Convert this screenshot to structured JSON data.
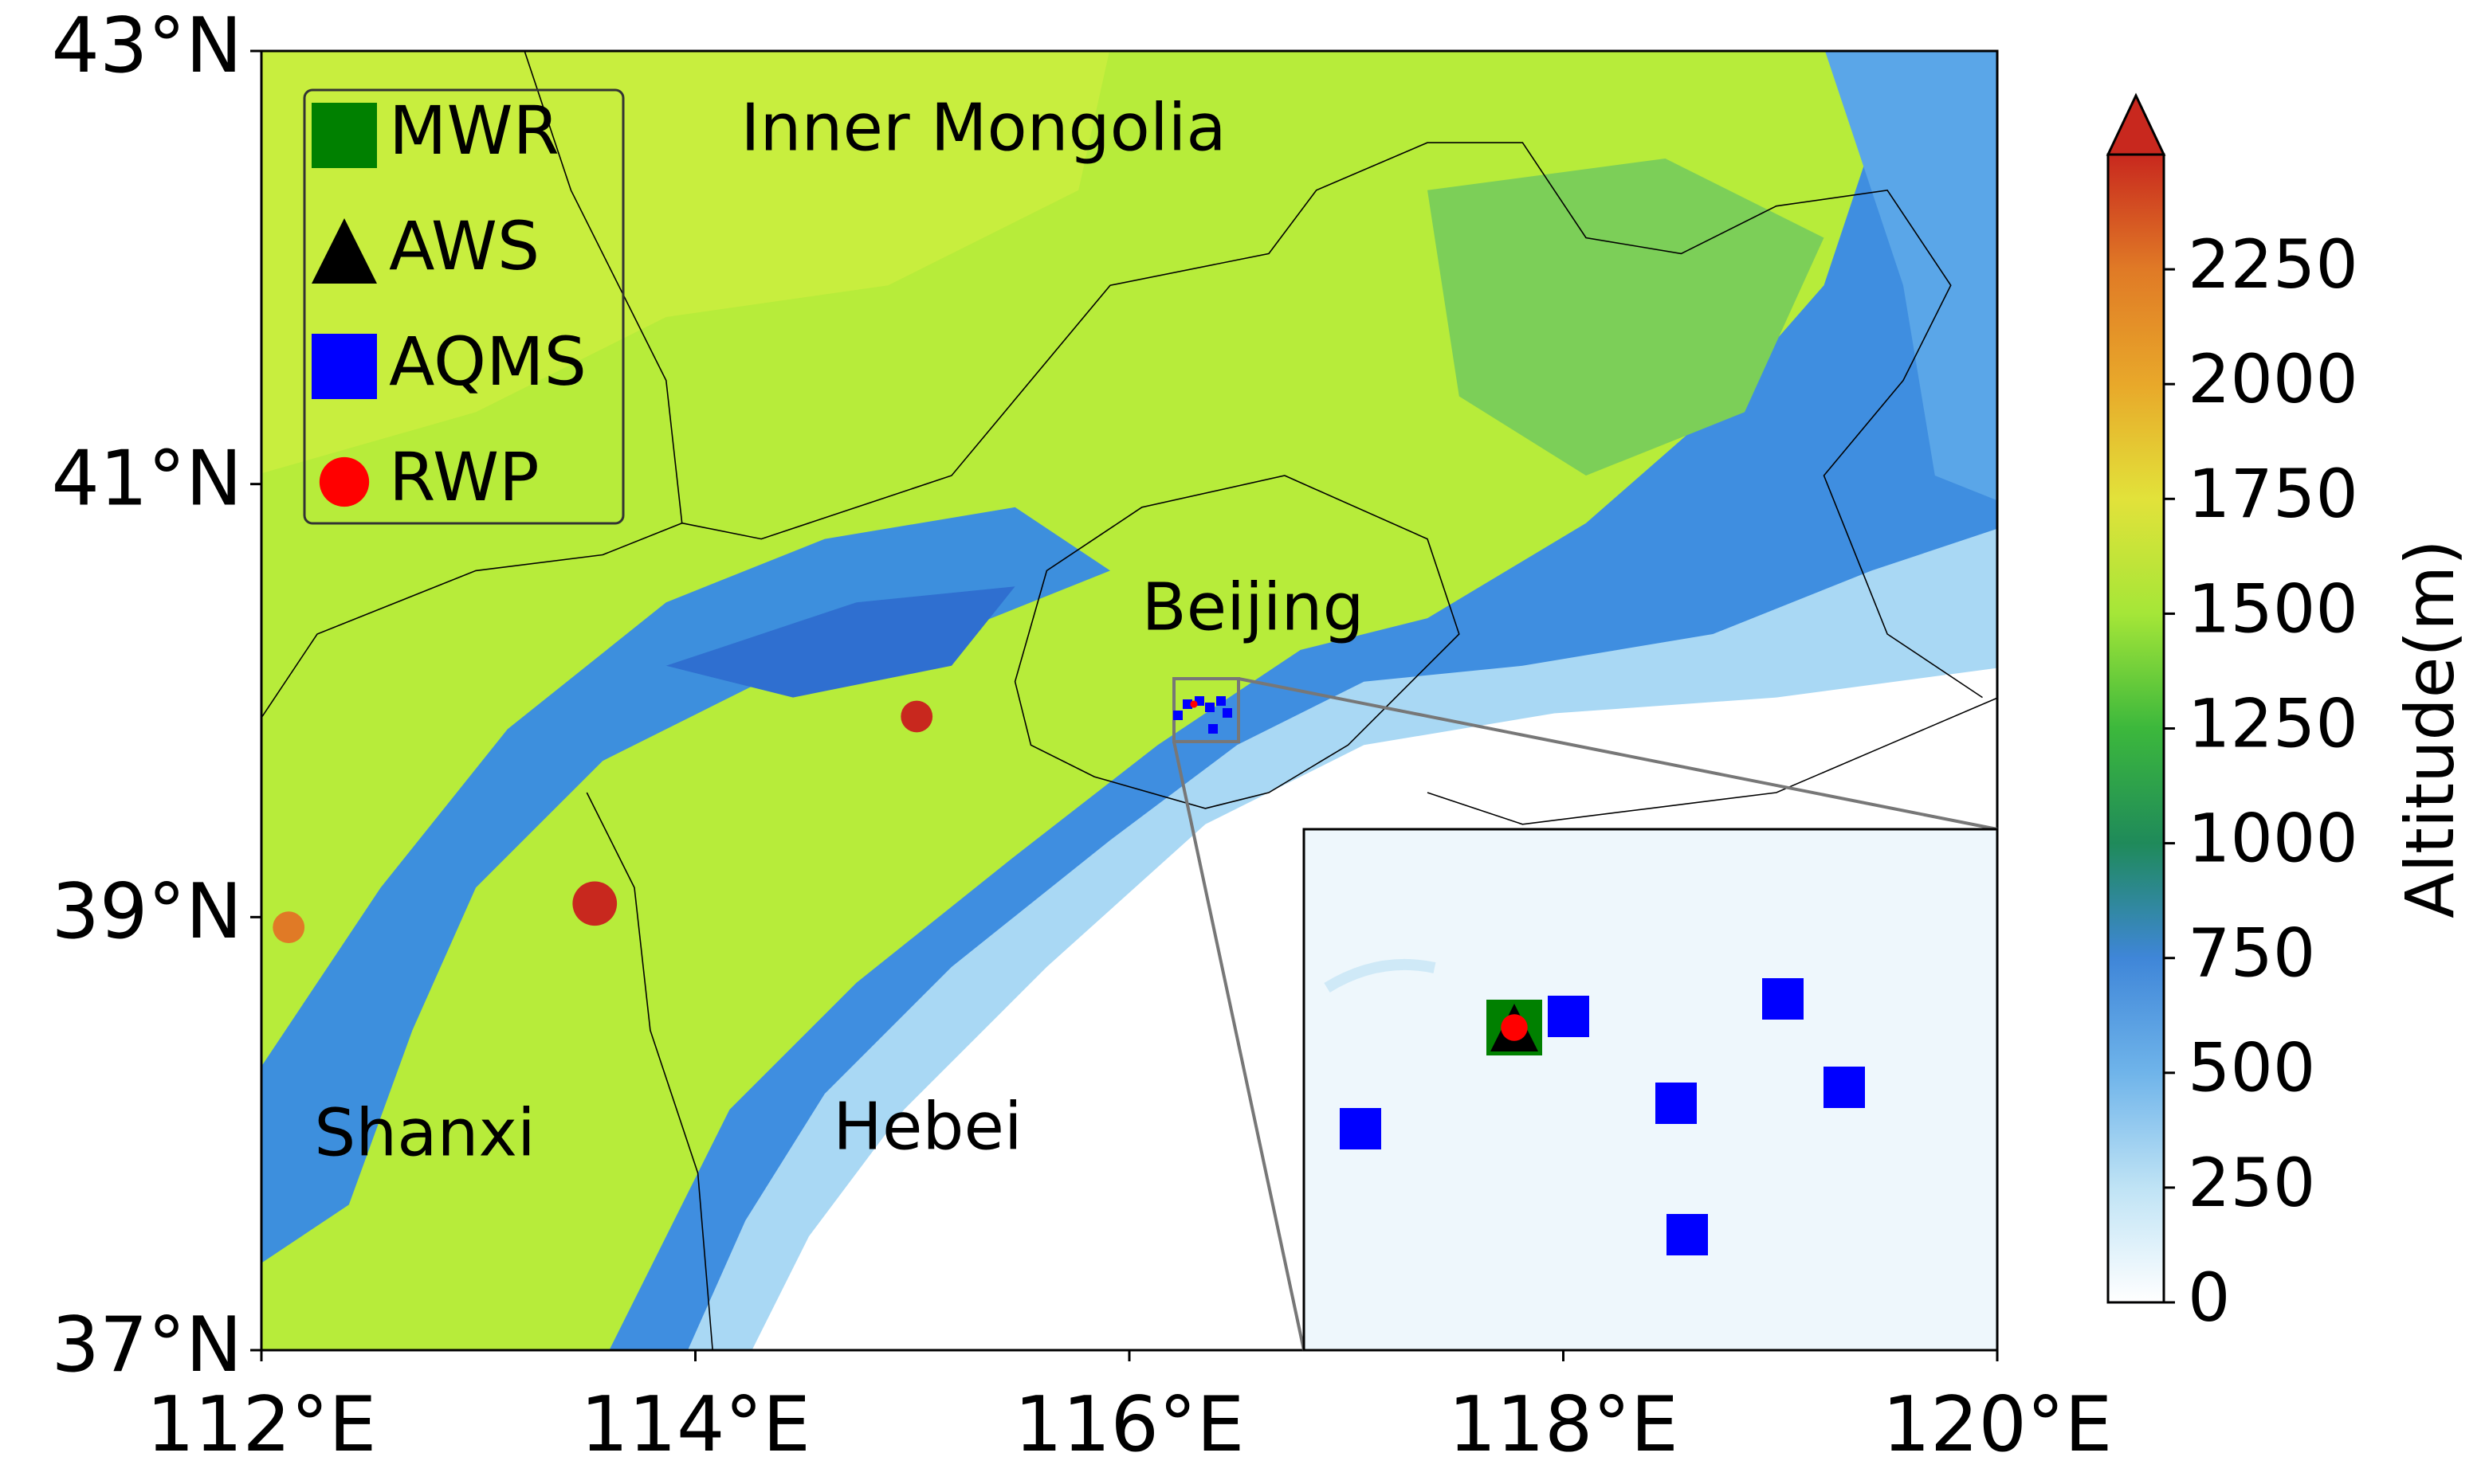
{
  "map": {
    "xticks": [
      {
        "value": 112,
        "label": "112°E"
      },
      {
        "value": 114,
        "label": "114°E"
      },
      {
        "value": 116,
        "label": "116°E"
      },
      {
        "value": 118,
        "label": "118°E"
      },
      {
        "value": 120,
        "label": "120°E"
      }
    ],
    "yticks": [
      {
        "value": 37,
        "label": "37°N"
      },
      {
        "value": 39,
        "label": "39°N"
      },
      {
        "value": 41,
        "label": "41°N"
      },
      {
        "value": 43,
        "label": "43°N"
      }
    ],
    "xlim": [
      112,
      120
    ],
    "ylim": [
      37,
      43
    ],
    "legend": [
      {
        "label": "MWR",
        "color": "#008000",
        "marker": "square"
      },
      {
        "label": "AWS",
        "color": "#000000",
        "marker": "triangle"
      },
      {
        "label": "AQMS",
        "color": "#0000ff",
        "marker": "square"
      },
      {
        "label": "RWP",
        "color": "#ff0000",
        "marker": "circle"
      }
    ],
    "regions": [
      "Inner Mongolia",
      "Beijing",
      "Hebei",
      "Shanxi"
    ]
  },
  "colorbar": {
    "label": "Altitude(m)",
    "lim": [
      0,
      2500
    ],
    "ticks": [
      0,
      250,
      500,
      750,
      1000,
      1250,
      1500,
      1750,
      2000,
      2250
    ],
    "extend": "max"
  }
}
